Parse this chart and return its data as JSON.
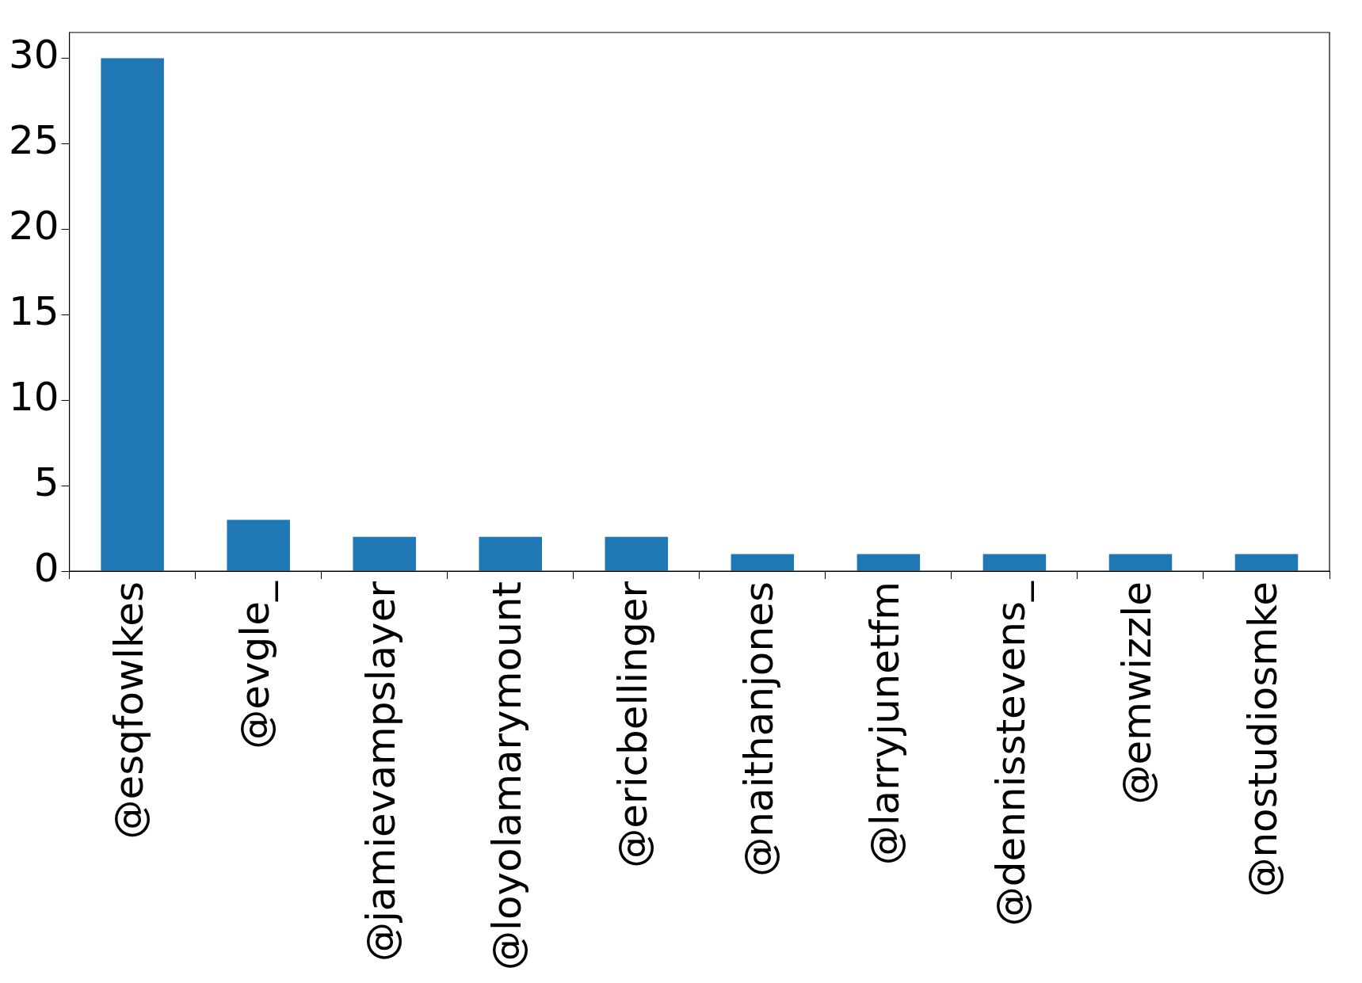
{
  "chart_data": {
    "type": "bar",
    "categories": [
      "@esqfowlkes",
      "@evgle_",
      "@jamievampslayer",
      "@loyolamarymount",
      "@ericbellinger",
      "@naithanjones",
      "@larryjunetfm",
      "@dennisstevens_",
      "@emwizzle",
      "@nostudiosmke"
    ],
    "values": [
      30,
      3,
      2,
      2,
      2,
      1,
      1,
      1,
      1,
      1
    ],
    "color": "#1f77b4",
    "ylim": [
      0,
      31.5
    ],
    "yticks": [
      0,
      5,
      10,
      15,
      20,
      25,
      30
    ],
    "grid": false,
    "legend": false
  }
}
